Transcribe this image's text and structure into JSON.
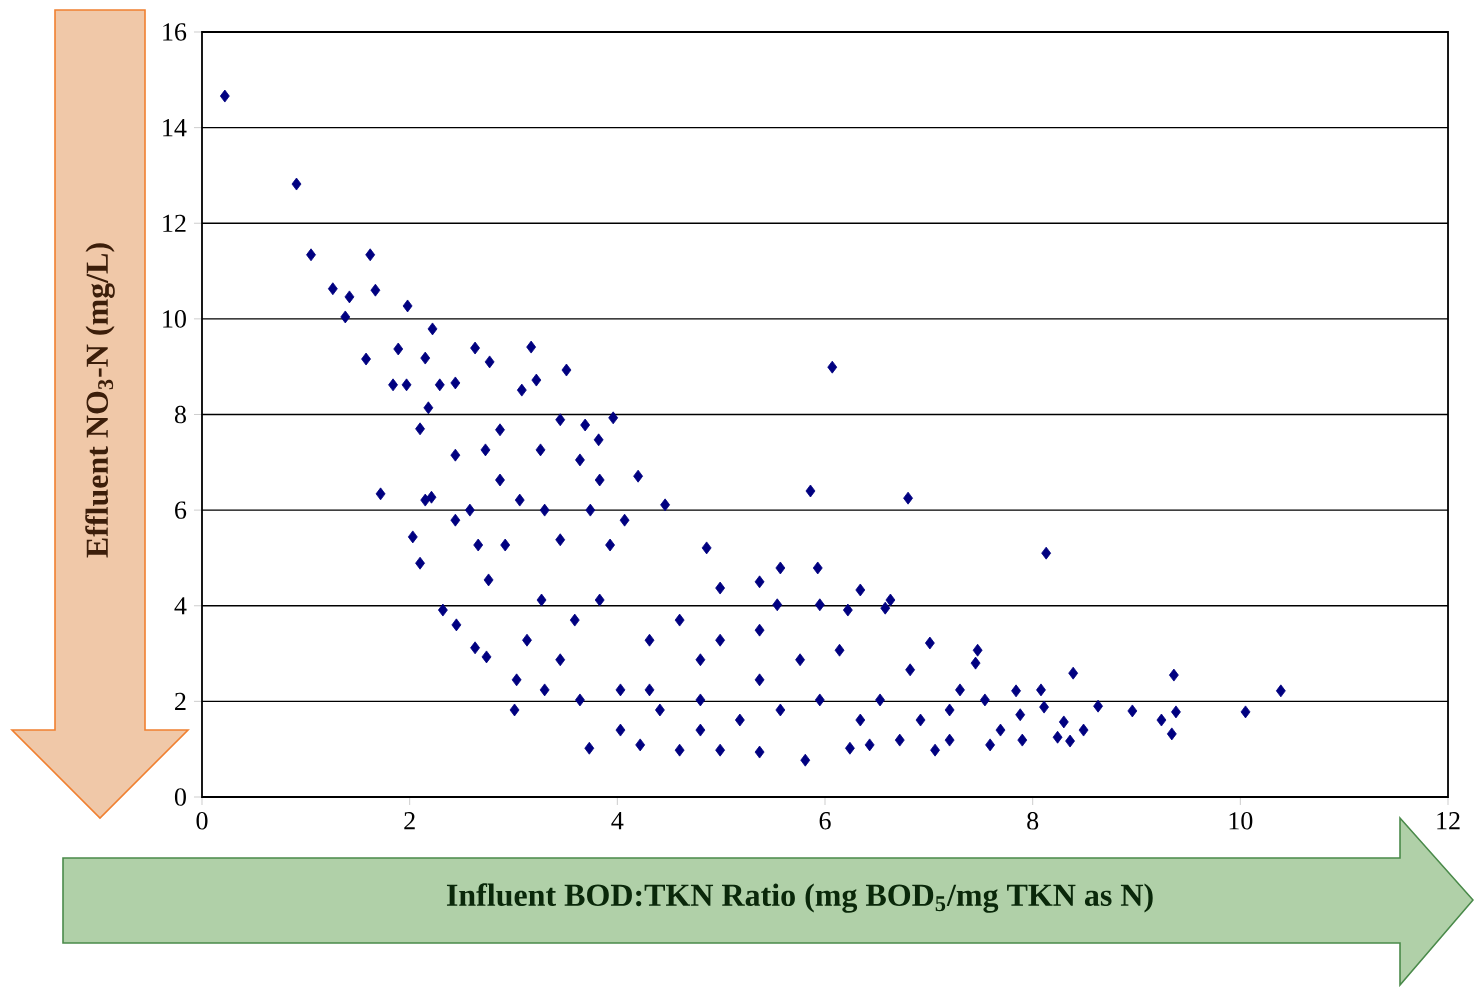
{
  "chart_data": {
    "type": "scatter",
    "xlabel": "Influent BOD:TKN Ratio (mg BOD$_{5}$/mg TKN as N)",
    "ylabel": "Effluent NO$_{3}$-N (mg/L)",
    "xlim": [
      0,
      12
    ],
    "ylim": [
      0,
      16
    ],
    "xticks": [
      0,
      2,
      4,
      6,
      8,
      10,
      12
    ],
    "yticks": [
      0,
      2,
      4,
      6,
      8,
      10,
      12,
      14,
      16
    ],
    "grid": "y",
    "marker": "diamond",
    "series": [
      {
        "color": "#000080",
        "x": [
          0.22,
          0.91,
          1.05,
          1.26,
          1.42,
          1.38,
          1.62,
          1.67,
          1.58,
          1.98,
          1.89,
          1.84,
          1.97,
          2.22,
          2.15,
          1.72,
          2.03,
          2.1,
          2.18,
          2.29,
          2.44,
          2.63,
          2.77,
          3.17,
          3.51,
          3.08,
          3.22,
          3.96,
          3.82,
          3.69,
          6.07,
          5.86,
          6.8,
          8.13,
          10.39,
          10.05,
          9.36,
          9.38,
          9.24,
          9.34,
          8.96,
          8.63,
          8.39,
          8.49,
          8.3,
          8.36,
          8.24,
          8.08,
          8.11,
          7.84,
          7.47,
          7.01,
          7.45,
          6.63,
          6.58,
          7.3,
          7.88,
          7.59,
          7.06,
          5.81,
          3.73,
          2.74,
          2.63,
          2.45,
          2.32,
          2.1,
          2.21,
          2.15,
          4.2,
          4.46,
          4.86,
          4.99,
          5.93,
          5.57,
          6.34,
          6.22,
          5.95,
          5.37,
          5.54,
          3.01,
          3.03,
          3.27,
          3.13,
          2.76,
          2.92,
          2.66,
          2.58,
          2.87,
          3.3,
          3.45,
          3.74,
          3.93,
          4.07,
          3.83,
          3.59,
          3.45,
          3.3,
          3.64,
          4.03,
          4.31,
          4.6,
          4.8,
          4.31,
          4.03,
          4.22,
          4.6,
          4.99,
          5.37,
          4.8,
          5.18,
          5.57,
          5.37,
          5.76,
          6.14,
          5.95,
          6.34,
          6.53,
          6.72,
          6.24,
          5.37,
          4.99,
          4.8,
          4.41,
          6.43,
          7.2,
          7.2,
          7.69,
          7.9,
          7.54,
          6.82,
          6.92,
          3.45,
          3.26,
          2.44,
          2.87,
          2.73,
          3.06,
          2.44,
          3.83,
          3.64
        ],
        "values": [
          14.66,
          12.82,
          11.34,
          10.63,
          10.46,
          10.04,
          11.34,
          10.6,
          9.16,
          10.27,
          9.37,
          8.62,
          8.62,
          9.79,
          9.18,
          6.34,
          5.44,
          7.7,
          8.14,
          8.62,
          8.66,
          9.39,
          9.1,
          9.41,
          8.93,
          8.51,
          8.72,
          7.93,
          7.47,
          7.78,
          8.99,
          6.4,
          6.25,
          5.1,
          2.22,
          1.78,
          2.55,
          1.78,
          1.61,
          1.32,
          1.8,
          1.9,
          2.59,
          1.4,
          1.57,
          1.17,
          1.25,
          2.24,
          1.88,
          2.22,
          3.07,
          3.22,
          2.8,
          4.12,
          3.95,
          2.24,
          1.72,
          1.09,
          0.98,
          0.77,
          1.02,
          2.93,
          3.12,
          3.6,
          3.91,
          4.89,
          6.27,
          6.21,
          6.71,
          6.11,
          5.21,
          4.37,
          4.79,
          4.79,
          4.33,
          3.91,
          4.02,
          4.5,
          4.02,
          1.82,
          2.45,
          4.12,
          3.28,
          4.54,
          5.27,
          5.27,
          6.0,
          6.63,
          6.0,
          5.38,
          6.0,
          5.27,
          5.79,
          4.12,
          3.7,
          2.87,
          2.24,
          2.03,
          2.24,
          3.28,
          3.7,
          2.87,
          2.24,
          1.4,
          1.09,
          0.98,
          0.98,
          0.94,
          1.4,
          1.61,
          1.82,
          2.45,
          2.87,
          3.07,
          2.03,
          1.61,
          2.03,
          1.19,
          1.02,
          3.49,
          3.28,
          2.03,
          1.82,
          1.09,
          1.19,
          1.82,
          1.4,
          1.19,
          2.03,
          2.66,
          1.61,
          7.89,
          7.26,
          7.15,
          7.68,
          7.26,
          6.21,
          5.79,
          6.63,
          7.05
        ]
      }
    ]
  }
}
